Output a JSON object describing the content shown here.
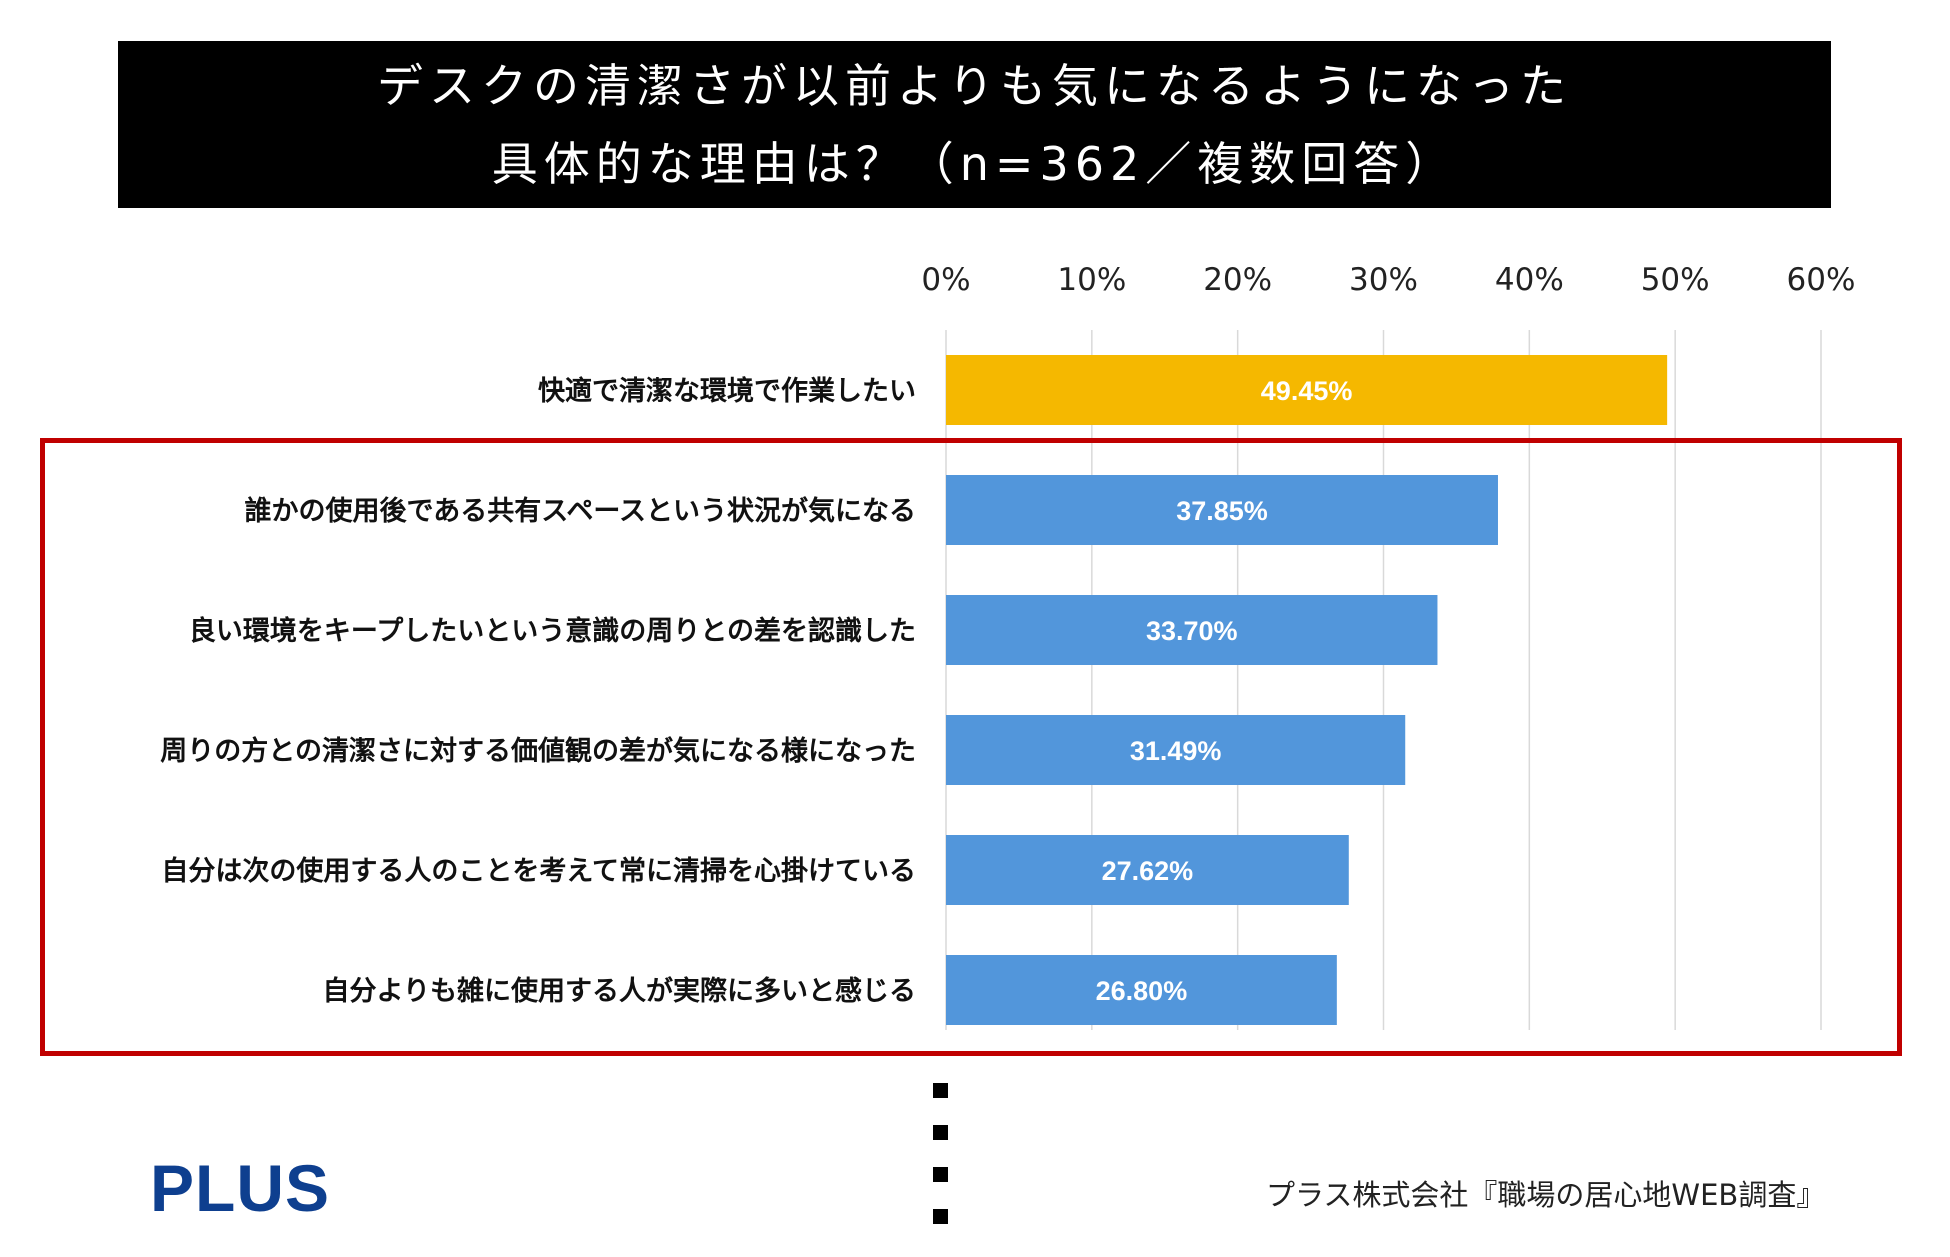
{
  "title": {
    "line1": "デスクの清潔さが以前よりも気になるようになった",
    "line2": "具体的な理由は？（n=362／複数回答）"
  },
  "chart_data": {
    "type": "bar",
    "orientation": "horizontal",
    "xlim": [
      0,
      60
    ],
    "ticks": [
      "0%",
      "10%",
      "20%",
      "30%",
      "40%",
      "50%",
      "60%"
    ],
    "grid": true,
    "categories": [
      "快適で清潔な環境で作業したい",
      "誰かの使用後である共有スペースという状況が気になる",
      "良い環境をキープしたいという意識の周りとの差を認識した",
      "周りの方との清潔さに対する価値観の差が気になる様になった",
      "自分は次の使用する人のことを考えて常に清掃を心掛けている",
      "自分よりも雑に使用する人が実際に多いと感じる"
    ],
    "values": [
      49.45,
      37.85,
      33.7,
      31.49,
      27.62,
      26.8
    ],
    "data_labels": [
      "49.45%",
      "37.85%",
      "33.70%",
      "31.49%",
      "27.62%",
      "26.80%"
    ],
    "colors": [
      "#f5b800",
      "#5296db",
      "#5296db",
      "#5296db",
      "#5296db",
      "#5296db"
    ],
    "highlight_color": "#c00000"
  },
  "footer": {
    "logo": "PLUS",
    "source": "プラス株式会社『職場の居心地WEB調査』"
  }
}
